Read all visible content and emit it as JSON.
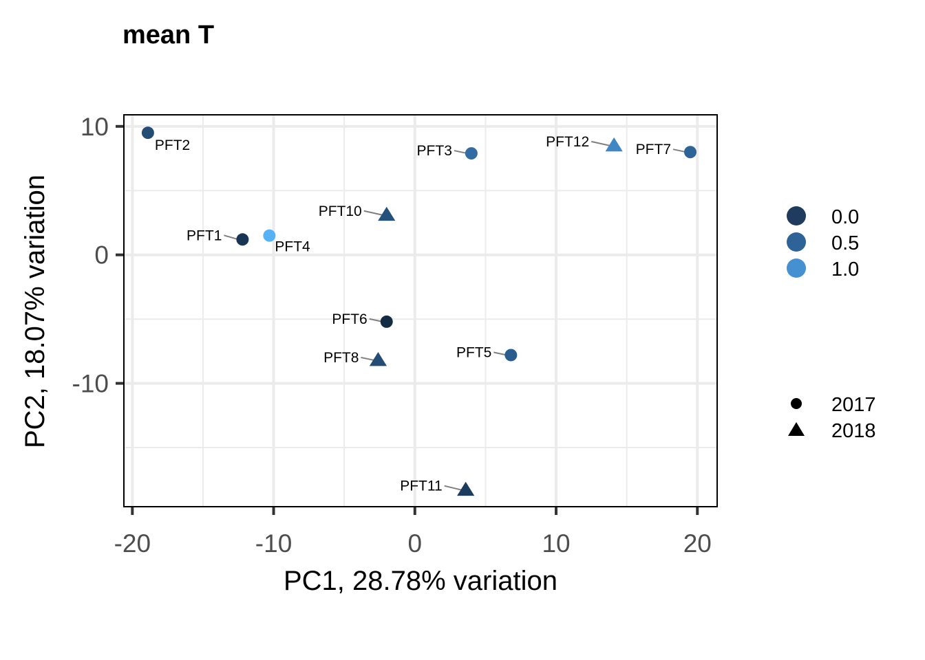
{
  "chart_data": {
    "type": "scatter",
    "title": "mean T",
    "xlabel": "PC1, 28.78% variation",
    "ylabel": "PC2, 18.07% variation",
    "xlim": [
      -20.6,
      21.4
    ],
    "ylim": [
      -19.6,
      10.9
    ],
    "x_ticks": [
      -20,
      -10,
      0,
      10,
      20
    ],
    "x_tick_labels": [
      "-20",
      "-10",
      "0",
      "10",
      "20"
    ],
    "y_ticks": [
      -10,
      0,
      10
    ],
    "y_tick_labels": [
      "-10",
      "0",
      "10"
    ],
    "grid": true,
    "legend_position": "right",
    "color_legend": {
      "values": [
        0.0,
        0.5,
        1.0
      ],
      "labels": [
        "0.0",
        "0.5",
        "1.0"
      ],
      "colors": [
        "#1f3c5e",
        "#2d6396",
        "#4490d0"
      ]
    },
    "shape_legend": {
      "labels": [
        "2017",
        "2018"
      ],
      "shapes": [
        "circle",
        "triangle"
      ]
    },
    "points": [
      {
        "label": "PFT2",
        "x": -18.9,
        "y": 9.5,
        "value": 0.3,
        "shape": "circle"
      },
      {
        "label": "PFT3",
        "x": 4.0,
        "y": 7.9,
        "value": 0.6,
        "shape": "circle"
      },
      {
        "label": "PFT12",
        "x": 14.1,
        "y": 8.5,
        "value": 0.9,
        "shape": "triangle"
      },
      {
        "label": "PFT7",
        "x": 19.5,
        "y": 8.0,
        "value": 0.5,
        "shape": "circle"
      },
      {
        "label": "PFT10",
        "x": -2.0,
        "y": 3.1,
        "value": 0.35,
        "shape": "triangle"
      },
      {
        "label": "PFT1",
        "x": -12.2,
        "y": 1.2,
        "value": 0.1,
        "shape": "circle"
      },
      {
        "label": "PFT4",
        "x": -10.3,
        "y": 1.5,
        "value": 1.05,
        "shape": "circle"
      },
      {
        "label": "PFT6",
        "x": -2.0,
        "y": -5.2,
        "value": 0.0,
        "shape": "circle"
      },
      {
        "label": "PFT8",
        "x": -2.6,
        "y": -8.2,
        "value": 0.3,
        "shape": "triangle"
      },
      {
        "label": "PFT5",
        "x": 6.8,
        "y": -7.8,
        "value": 0.45,
        "shape": "circle"
      },
      {
        "label": "PFT11",
        "x": 3.6,
        "y": -18.3,
        "value": 0.15,
        "shape": "triangle"
      }
    ]
  }
}
